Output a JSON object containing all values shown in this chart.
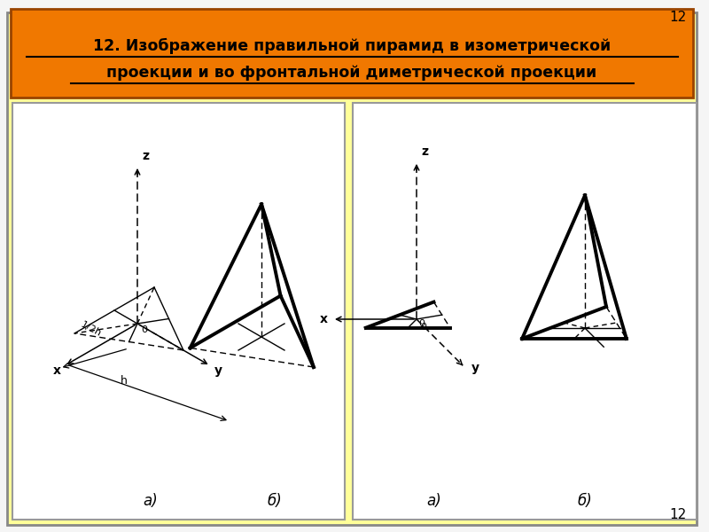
{
  "title_line1": "12. Изображение правильной пирамид в изометрической",
  "title_line2": "проекции и во фронтальной диметрической проекции",
  "title_bg": "#F07800",
  "outer_bg": "#FFFF99",
  "inner_bg": "#FFFFFF",
  "page_bg": "#F5F5F5",
  "page_number": "12",
  "label_a": "а)",
  "label_b": "б)"
}
